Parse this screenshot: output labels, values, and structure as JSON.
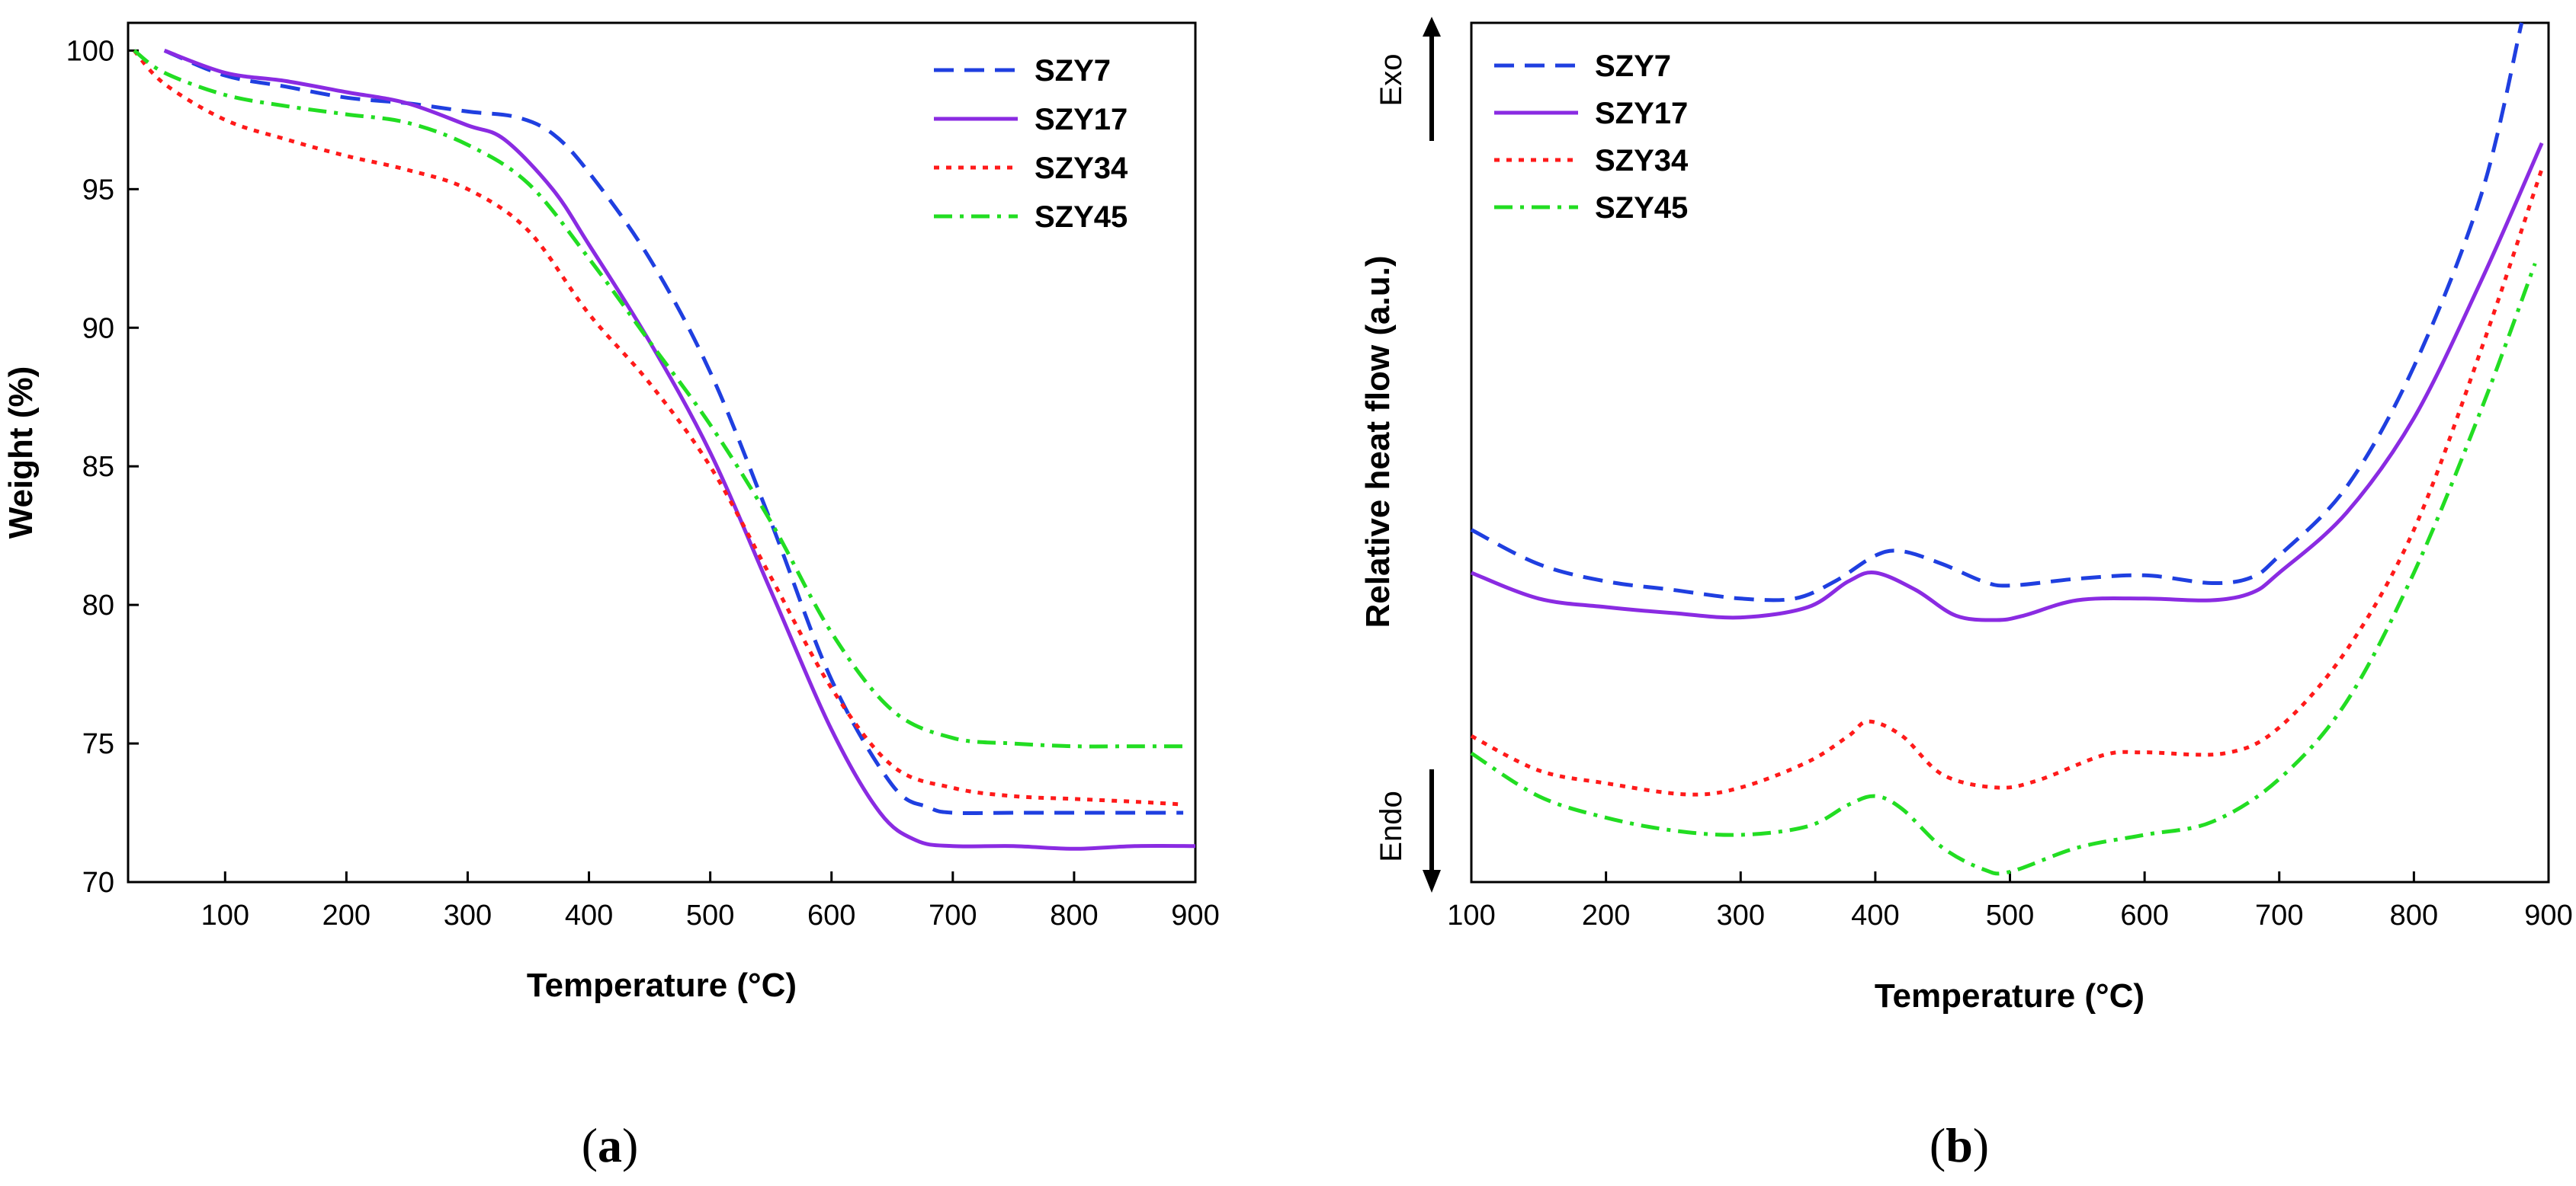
{
  "colors": {
    "SZY7": "#1f3fe0",
    "SZY17": "#8a2be2",
    "SZY34": "#ff1a1a",
    "SZY45": "#22dd22"
  },
  "chart_data": [
    {
      "type": "line",
      "panel": "a",
      "title": "",
      "xlabel": "Temperature (°C)",
      "ylabel": "Weight (%)",
      "xlim": [
        20,
        900
      ],
      "ylim": [
        70,
        101
      ],
      "xticks": [
        100,
        200,
        300,
        400,
        500,
        600,
        700,
        800,
        900
      ],
      "yticks": [
        70,
        75,
        80,
        85,
        90,
        95,
        100
      ],
      "legend_position": "top-right",
      "series": [
        {
          "name": "SZY7",
          "style": "dash",
          "x": [
            50,
            100,
            150,
            200,
            250,
            300,
            340,
            370,
            400,
            450,
            500,
            550,
            600,
            650,
            680,
            700,
            750,
            800,
            850,
            890
          ],
          "y": [
            100,
            99.1,
            98.7,
            98.3,
            98.1,
            97.8,
            97.6,
            97.0,
            95.6,
            92.5,
            88.4,
            83.0,
            77.3,
            73.5,
            72.7,
            72.5,
            72.5,
            72.5,
            72.5,
            72.5
          ]
        },
        {
          "name": "SZY17",
          "style": "solid",
          "x": [
            50,
            100,
            150,
            200,
            250,
            300,
            330,
            370,
            400,
            450,
            500,
            550,
            600,
            640,
            670,
            700,
            750,
            800,
            850,
            900
          ],
          "y": [
            100,
            99.2,
            98.9,
            98.5,
            98.1,
            97.3,
            96.8,
            95.0,
            93.0,
            89.5,
            85.5,
            80.5,
            75.5,
            72.5,
            71.5,
            71.3,
            71.3,
            71.2,
            71.3,
            71.3
          ]
        },
        {
          "name": "SZY34",
          "style": "dot",
          "x": [
            25,
            50,
            100,
            150,
            200,
            250,
            300,
            350,
            400,
            450,
            500,
            550,
            600,
            650,
            700,
            750,
            800,
            850,
            890
          ],
          "y": [
            100,
            98.8,
            97.5,
            96.8,
            96.2,
            95.7,
            95.0,
            93.5,
            90.5,
            88.0,
            85.0,
            81.0,
            77.0,
            74.2,
            73.4,
            73.1,
            73.0,
            72.9,
            72.8
          ]
        },
        {
          "name": "SZY45",
          "style": "dashdot",
          "x": [
            25,
            50,
            100,
            150,
            200,
            250,
            300,
            350,
            400,
            450,
            500,
            550,
            600,
            650,
            700,
            750,
            800,
            850,
            890
          ],
          "y": [
            100,
            99.2,
            98.4,
            98.0,
            97.7,
            97.4,
            96.6,
            95.2,
            92.5,
            89.5,
            86.5,
            83.0,
            79.0,
            76.2,
            75.2,
            75.0,
            74.9,
            74.9,
            74.9
          ]
        }
      ]
    },
    {
      "type": "line",
      "panel": "b",
      "title": "",
      "xlabel": "Temperature (°C)",
      "ylabel": "Relative heat flow (a.u.)",
      "xlim": [
        100,
        900
      ],
      "ylim": [
        0,
        100
      ],
      "xticks": [
        100,
        200,
        300,
        400,
        500,
        600,
        700,
        800,
        900
      ],
      "yticks": [],
      "legend_position": "top-left",
      "series": [
        {
          "name": "SZY7",
          "style": "dash",
          "x": [
            100,
            150,
            200,
            250,
            300,
            340,
            370,
            400,
            420,
            450,
            480,
            500,
            550,
            600,
            650,
            680,
            700,
            750,
            800,
            850,
            880
          ],
          "y": [
            41,
            37,
            35,
            34,
            33,
            33,
            35,
            38,
            38.5,
            37,
            35,
            34.5,
            35.3,
            35.7,
            34.8,
            35.5,
            38,
            46,
            60,
            80,
            100
          ]
        },
        {
          "name": "SZY17",
          "style": "solid",
          "x": [
            100,
            150,
            200,
            250,
            300,
            350,
            380,
            400,
            430,
            460,
            490,
            510,
            550,
            600,
            650,
            680,
            700,
            750,
            800,
            850,
            895
          ],
          "y": [
            36,
            33,
            32,
            31.3,
            30.8,
            32,
            35,
            36,
            34,
            31,
            30.5,
            31,
            32.8,
            33.0,
            32.8,
            33.7,
            36,
            43,
            54,
            70,
            86
          ]
        },
        {
          "name": "SZY34",
          "style": "dot",
          "x": [
            100,
            150,
            200,
            260,
            300,
            350,
            380,
            395,
            420,
            450,
            490,
            520,
            570,
            600,
            660,
            700,
            750,
            800,
            850,
            895
          ],
          "y": [
            17,
            13,
            11.5,
            10.2,
            11,
            14,
            17,
            18.7,
            17,
            12.5,
            11,
            11.8,
            14.8,
            15.1,
            15.0,
            18,
            27,
            41,
            62,
            83
          ]
        },
        {
          "name": "SZY45",
          "style": "dashdot",
          "x": [
            100,
            150,
            200,
            250,
            300,
            350,
            380,
            400,
            420,
            450,
            480,
            500,
            550,
            600,
            650,
            700,
            750,
            800,
            850,
            890
          ],
          "y": [
            15,
            10,
            7.5,
            6,
            5.5,
            6.5,
            9,
            10,
            8.5,
            4,
            1.5,
            1.2,
            4,
            5.5,
            7,
            12,
            21,
            36,
            55,
            72
          ]
        }
      ]
    }
  ],
  "annotations": {
    "exo": "Exo",
    "endo": "Endo",
    "panel_a": "a",
    "panel_b": "b",
    "paren_open": "(",
    "paren_close": ")"
  }
}
